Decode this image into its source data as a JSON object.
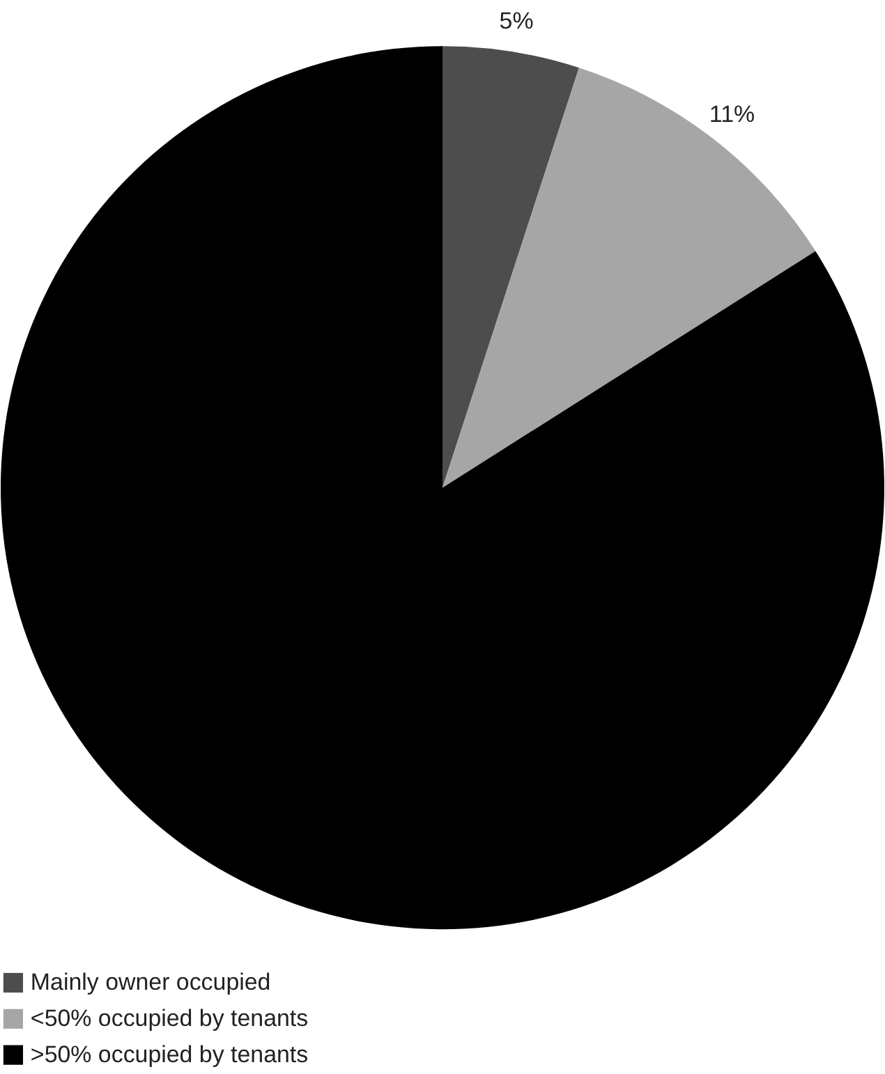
{
  "chart_data": {
    "type": "pie",
    "categories": [
      "Mainly owner occupied",
      "<50% occupied by tenants",
      ">50% occupied by tenants"
    ],
    "values": [
      5,
      11,
      84
    ],
    "colors": [
      "#4d4d4d",
      "#a6a6a6",
      "#000000"
    ],
    "value_labels": [
      "5%",
      "11%",
      null
    ],
    "legend": "bottom"
  }
}
